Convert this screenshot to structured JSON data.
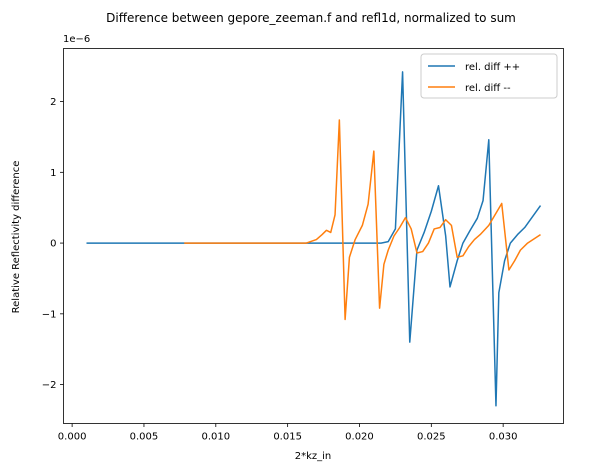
{
  "chart_data": {
    "type": "line",
    "title": "Difference between gepore_zeeman.f and refl1d, normalized to sum",
    "xlabel": "2*kz_in",
    "ylabel": "Relative Reflectivity difference",
    "y_offset_label": "1e−6",
    "xlim": [
      -0.0006,
      0.0342
    ],
    "ylim": [
      -2.55,
      2.75
    ],
    "xticks": [
      0.0,
      0.005,
      0.01,
      0.015,
      0.02,
      0.025,
      0.03
    ],
    "xtick_labels": [
      "0.000",
      "0.005",
      "0.010",
      "0.015",
      "0.020",
      "0.025",
      "0.030"
    ],
    "yticks": [
      -2,
      -1,
      0,
      1,
      2
    ],
    "ytick_labels": [
      "−2",
      "−1",
      "0",
      "1",
      "2"
    ],
    "grid": false,
    "legend_position": "top-right",
    "series": [
      {
        "name": "rel. diff ++",
        "color": "#1f77b4",
        "x": [
          0.001,
          0.008,
          0.015,
          0.018,
          0.02,
          0.021,
          0.0215,
          0.022,
          0.0225,
          0.023,
          0.0235,
          0.024,
          0.0245,
          0.025,
          0.0255,
          0.026,
          0.0263,
          0.0268,
          0.0272,
          0.0277,
          0.0282,
          0.0286,
          0.029,
          0.0295,
          0.0297,
          0.0301,
          0.0305,
          0.031,
          0.0315,
          0.032,
          0.0326
        ],
        "y": [
          0.0,
          0.0,
          0.0,
          0.0,
          0.0,
          0.0,
          0.0,
          0.02,
          0.2,
          2.42,
          -1.4,
          -0.1,
          0.15,
          0.45,
          0.81,
          0.1,
          -0.62,
          -0.25,
          0.0,
          0.18,
          0.35,
          0.6,
          1.46,
          -2.3,
          -0.7,
          -0.25,
          0.0,
          0.12,
          0.22,
          0.36,
          0.53
        ]
      },
      {
        "name": "rel. diff --",
        "color": "#ff7f0e",
        "x": [
          0.0078,
          0.012,
          0.015,
          0.0163,
          0.017,
          0.0174,
          0.0177,
          0.018,
          0.0183,
          0.0186,
          0.019,
          0.0193,
          0.0197,
          0.0202,
          0.0206,
          0.021,
          0.0214,
          0.0217,
          0.022,
          0.0224,
          0.0228,
          0.0232,
          0.0236,
          0.024,
          0.0244,
          0.0248,
          0.0252,
          0.0256,
          0.026,
          0.0264,
          0.0268,
          0.0272,
          0.0276,
          0.028,
          0.0284,
          0.029,
          0.0299,
          0.0304,
          0.0308,
          0.0312,
          0.0317,
          0.0326
        ],
        "y": [
          0.0,
          0.0,
          0.0,
          0.0,
          0.05,
          0.12,
          0.18,
          0.15,
          0.4,
          1.74,
          -1.08,
          -0.2,
          0.05,
          0.25,
          0.55,
          1.3,
          -0.92,
          -0.3,
          -0.1,
          0.1,
          0.22,
          0.36,
          0.2,
          -0.14,
          -0.12,
          0.0,
          0.2,
          0.22,
          0.33,
          0.25,
          -0.2,
          -0.18,
          -0.05,
          0.05,
          0.12,
          0.25,
          0.56,
          -0.38,
          -0.25,
          -0.1,
          0.0,
          0.12
        ]
      }
    ]
  }
}
